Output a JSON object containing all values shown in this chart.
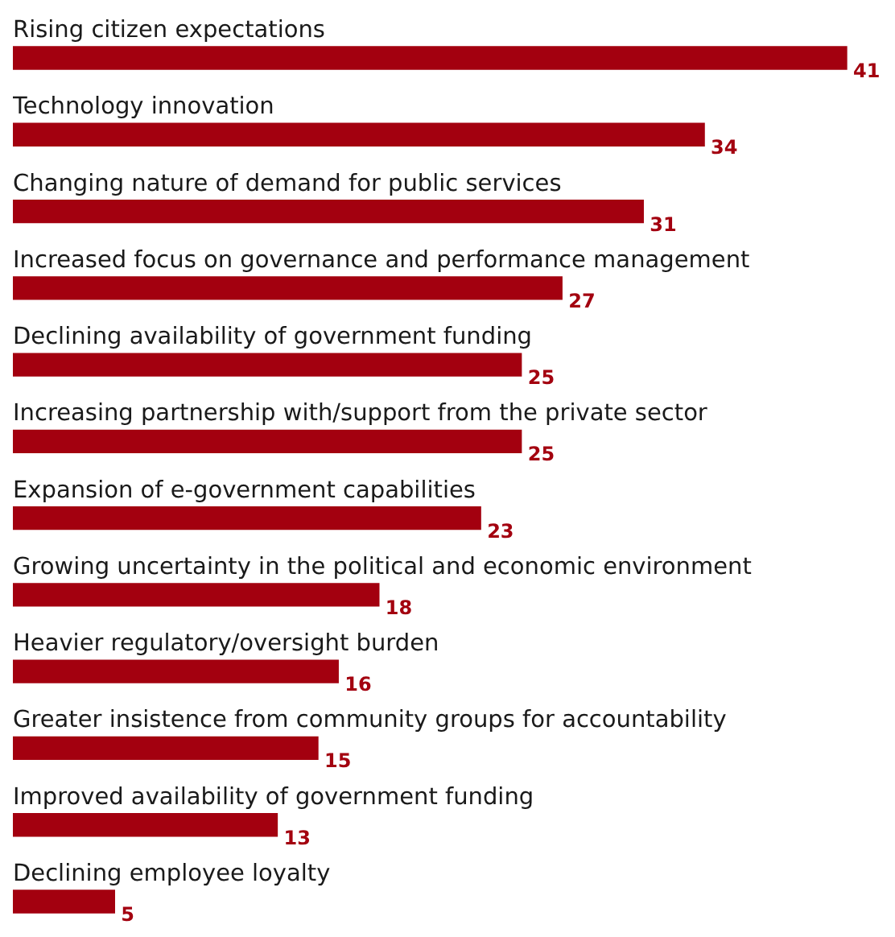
{
  "chart_data": {
    "type": "bar",
    "orientation": "horizontal",
    "categories": [
      "Rising citizen expectations",
      "Technology innovation",
      "Changing nature of demand for public services",
      "Increased focus on governance and performance management",
      "Declining availability of government funding",
      "Increasing partnership with/support from the private sector",
      "Expansion of e-government capabilities",
      "Growing uncertainty in the political and economic environment",
      "Heavier regulatory/oversight burden",
      "Greater insistence from community groups for accountability",
      "Improved availability of government funding",
      "Declining employee loyalty"
    ],
    "values": [
      41,
      34,
      31,
      27,
      25,
      25,
      23,
      18,
      16,
      15,
      13,
      5
    ],
    "color": "#a3000f",
    "data_labels": true,
    "legend": false,
    "tick_labels": "y"
  }
}
